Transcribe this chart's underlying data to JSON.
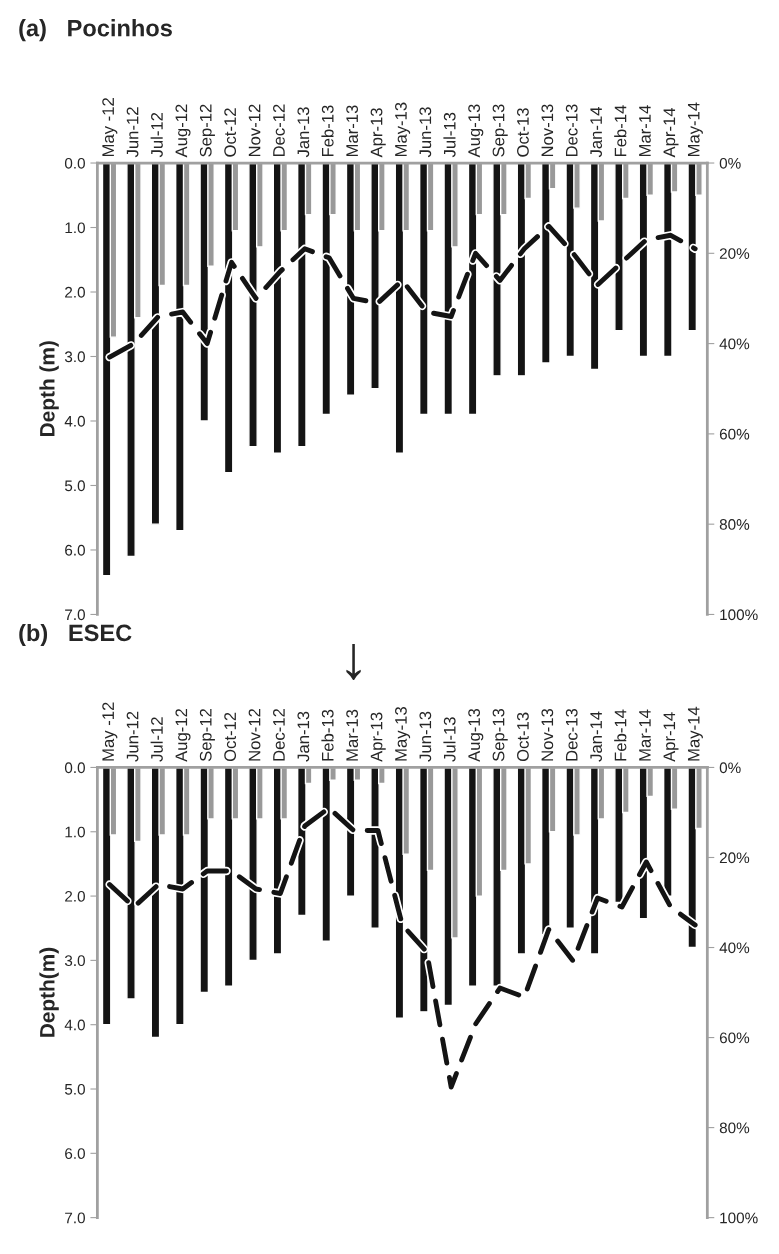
{
  "chart_data": [
    {
      "type": "bar",
      "title": "(a)   Pocinhos",
      "ylabel": "Depth (m)",
      "categories": [
        "May -12",
        "Jun-12",
        "Jul-12",
        "Aug-12",
        "Sep-12",
        "Oct-12",
        "Nov-12",
        "Dec-12",
        "Jan-13",
        "Feb-13",
        "Mar-13",
        "Apr-13",
        "May-13",
        "Jun-13",
        "Jul-13",
        "Aug-13",
        "Sep-13",
        "Oct-13",
        "Nov-13",
        "Dec-13",
        "Jan-14",
        "Feb-14",
        "Mar-14",
        "Apr-14",
        "May-14"
      ],
      "series": [
        {
          "color": "#141414",
          "values": [
            6.4,
            6.1,
            5.6,
            5.7,
            4.0,
            4.8,
            4.4,
            4.5,
            4.4,
            3.9,
            3.6,
            3.5,
            4.5,
            3.9,
            3.9,
            3.9,
            3.3,
            3.3,
            3.1,
            3.0,
            3.2,
            2.6,
            3.0,
            3.0,
            2.6
          ]
        },
        {
          "color": "#999999",
          "values": [
            2.7,
            2.4,
            1.9,
            1.9,
            1.6,
            1.05,
            1.3,
            1.05,
            0.8,
            0.8,
            1.05,
            1.05,
            1.05,
            1.05,
            1.3,
            0.8,
            0.8,
            0.55,
            0.4,
            0.7,
            0.9,
            0.55,
            0.5,
            0.45,
            0.5
          ]
        },
        {
          "type": "line",
          "axis": "y2",
          "color": "#141414",
          "line_style": "dashed",
          "values": [
            43,
            40,
            34,
            33,
            40,
            22,
            30,
            24,
            19,
            21,
            30,
            31,
            26,
            33,
            34,
            20,
            26,
            19,
            14,
            20,
            27,
            22,
            17,
            16,
            19
          ]
        }
      ],
      "ylim": [
        7.0,
        0.0
      ],
      "yticks": [
        {
          "value": 0,
          "label": "0.0"
        },
        {
          "value": 1,
          "label": "1.0"
        },
        {
          "value": 2,
          "label": "2.0"
        },
        {
          "value": 3,
          "label": "3.0"
        },
        {
          "value": 4,
          "label": "4.0"
        },
        {
          "value": 5,
          "label": "5.0"
        },
        {
          "value": 6,
          "label": "6.0"
        },
        {
          "value": 7,
          "label": "7.0"
        }
      ],
      "y2lim": [
        100,
        0
      ],
      "y2ticks": [
        {
          "value": 0,
          "label": "0%"
        },
        {
          "value": 20,
          "label": "20%"
        },
        {
          "value": 40,
          "label": "40%"
        },
        {
          "value": 60,
          "label": "60%"
        },
        {
          "value": 80,
          "label": "80%"
        },
        {
          "value": 100,
          "label": "100%"
        }
      ],
      "grid": false
    },
    {
      "type": "bar",
      "title": "(b)   ESEC",
      "ylabel": "Depth(m)",
      "categories": [
        "May -12",
        "Jun-12",
        "Jul-12",
        "Aug-12",
        "Sep-12",
        "Oct-12",
        "Nov-12",
        "Dec-12",
        "Jan-13",
        "Feb-13",
        "Mar-13",
        "Apr-13",
        "May-13",
        "Jun-13",
        "Jul-13",
        "Aug-13",
        "Sep-13",
        "Oct-13",
        "Nov-13",
        "Dec-13",
        "Jan-14",
        "Feb-14",
        "Mar-14",
        "Apr-14",
        "May-14"
      ],
      "series": [
        {
          "color": "#141414",
          "values": [
            4.0,
            3.6,
            4.2,
            4.0,
            3.5,
            3.4,
            3.0,
            2.9,
            2.3,
            2.7,
            2.0,
            2.5,
            3.9,
            3.8,
            3.7,
            3.4,
            3.4,
            2.9,
            2.6,
            2.5,
            2.9,
            2.1,
            2.35,
            2.0,
            2.8
          ]
        },
        {
          "color": "#999999",
          "values": [
            1.05,
            1.15,
            1.05,
            1.05,
            0.8,
            0.8,
            0.8,
            0.8,
            0.25,
            0.2,
            0.2,
            0.25,
            1.35,
            1.6,
            2.65,
            2.0,
            1.6,
            1.5,
            1.0,
            1.05,
            0.8,
            0.7,
            0.45,
            0.65,
            0.95
          ]
        },
        {
          "type": "line",
          "axis": "y2",
          "color": "#141414",
          "line_style": "dashed",
          "values": [
            26,
            31,
            26,
            27,
            23,
            23,
            27,
            28,
            13,
            9,
            14,
            14,
            35,
            41,
            71,
            57,
            49,
            51,
            36,
            43,
            29,
            31,
            21,
            31,
            35
          ]
        }
      ],
      "ylim": [
        7.0,
        0.0
      ],
      "yticks": [
        {
          "value": 0,
          "label": "0.0"
        },
        {
          "value": 1,
          "label": "1.0"
        },
        {
          "value": 2,
          "label": "2.0"
        },
        {
          "value": 3,
          "label": "3.0"
        },
        {
          "value": 4,
          "label": "4.0"
        },
        {
          "value": 5,
          "label": "5.0"
        },
        {
          "value": 6,
          "label": "6.0"
        },
        {
          "value": 7,
          "label": "7.0"
        }
      ],
      "y2lim": [
        100,
        0
      ],
      "y2ticks": [
        {
          "value": 0,
          "label": "0%"
        },
        {
          "value": 20,
          "label": "20%"
        },
        {
          "value": 40,
          "label": "40%"
        },
        {
          "value": 60,
          "label": "60%"
        },
        {
          "value": 80,
          "label": "80%"
        },
        {
          "value": 100,
          "label": "100%"
        }
      ],
      "annotations": [
        "↓"
      ],
      "grid": false
    }
  ]
}
